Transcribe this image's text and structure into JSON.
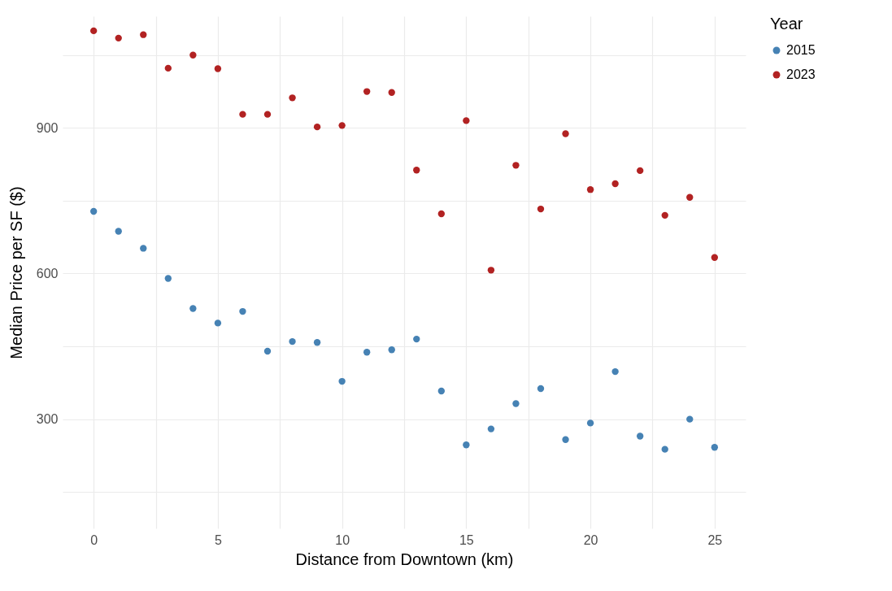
{
  "chart_data": {
    "type": "scatter",
    "xlabel": "Distance from Downtown (km)",
    "ylabel": "Median Price per SF ($)",
    "legend_title": "Year",
    "legend": "right",
    "grid": true,
    "marker": "circle",
    "x": [
      0,
      1,
      2,
      3,
      4,
      5,
      6,
      7,
      8,
      9,
      10,
      11,
      12,
      13,
      14,
      15,
      16,
      17,
      18,
      19,
      20,
      21,
      22,
      23,
      24,
      25
    ],
    "xlim": [
      -1.25,
      26.25
    ],
    "xticks": [
      0,
      {
        "value": 2.5,
        "label": null
      },
      5,
      {
        "value": 7.5,
        "label": null
      },
      10,
      {
        "value": 12.5,
        "label": null
      },
      15,
      {
        "value": 17.5,
        "label": null
      },
      20,
      {
        "value": 22.5,
        "label": null
      },
      25
    ],
    "ylim": [
      75,
      1130
    ],
    "yticks": [
      {
        "value": 150,
        "label": null
      },
      300,
      {
        "value": 450,
        "label": null
      },
      600,
      {
        "value": 750,
        "label": null
      },
      900,
      {
        "value": 1050,
        "label": null
      }
    ],
    "series": [
      {
        "name": "2015",
        "color": "#4682b4",
        "values": [
          728,
          687,
          652,
          590,
          528,
          498,
          522,
          440,
          460,
          458,
          378,
          438,
          443,
          465,
          358,
          247,
          280,
          332,
          363,
          258,
          292,
          398,
          265,
          238,
          300,
          242
        ]
      },
      {
        "name": "2023",
        "color": "#b22222",
        "values": [
          1100,
          1085,
          1092,
          1023,
          1050,
          1022,
          928,
          928,
          962,
          902,
          905,
          975,
          973,
          813,
          723,
          915,
          607,
          823,
          733,
          888,
          773,
          785,
          812,
          720,
          757,
          633
        ]
      }
    ]
  }
}
